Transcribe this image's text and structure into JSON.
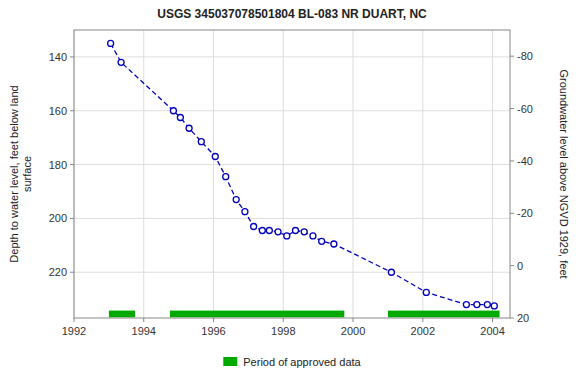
{
  "chart_data": {
    "type": "line",
    "title": "USGS 345037078501804 BL-083 NR DUART, NC",
    "ylabel": "Depth to water level, feet below land\nsurface",
    "y2label": "Groundwater level above NGVD 1929, feet",
    "xlim": [
      1992,
      2004.5
    ],
    "xticks": [
      1992,
      1994,
      1996,
      1998,
      2000,
      2002,
      2004
    ],
    "ylim": [
      237,
      130
    ],
    "yticks": [
      140,
      160,
      180,
      200,
      220
    ],
    "y2lim": [
      20,
      -90
    ],
    "y2ticks": [
      20,
      0,
      -20,
      -40,
      -60,
      -80
    ],
    "grid": true,
    "legend": "bottom",
    "series": [
      {
        "type": "line",
        "color": "#0000bb",
        "marker": "circle",
        "line_style": "dashed",
        "x": [
          1993.05,
          1993.35,
          1994.85,
          1995.05,
          1995.3,
          1995.65,
          1996.05,
          1996.35,
          1996.65,
          1996.9,
          1997.15,
          1997.4,
          1997.6,
          1997.85,
          1998.1,
          1998.35,
          1998.6,
          1998.85,
          1999.1,
          1999.45,
          2001.1,
          2002.1,
          2003.25,
          2003.55,
          2003.85,
          2004.05
        ],
        "values": [
          135.0,
          142.0,
          160.0,
          162.5,
          166.5,
          171.5,
          177.0,
          184.5,
          193.0,
          197.5,
          203.0,
          204.5,
          204.5,
          205.0,
          206.5,
          204.5,
          205.0,
          206.5,
          208.5,
          209.5,
          220.0,
          227.5,
          232.0,
          232.0,
          232.0,
          232.5
        ]
      },
      {
        "type": "bar",
        "name": "Period of approved data",
        "color": "#00aa00",
        "x_start": [
          1993.0,
          1994.75,
          2001.0
        ],
        "x_end": [
          1993.75,
          1999.75,
          2004.2
        ],
        "values": [
          235.5,
          235.5,
          235.5
        ],
        "height": 2.5
      }
    ]
  }
}
